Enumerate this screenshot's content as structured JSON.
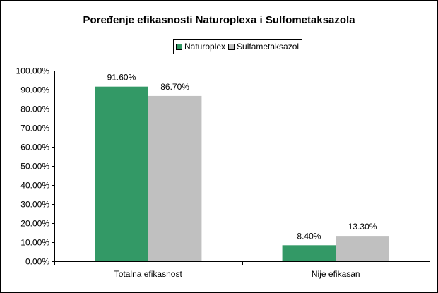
{
  "chart_data": {
    "type": "bar",
    "title": "Poređenje efikasnosti Naturoplexa i Sulfometaksazola",
    "xlabel": "",
    "ylabel": "",
    "categories": [
      "Totalna efikasnost",
      "Nije efikasan"
    ],
    "series": [
      {
        "name": "Naturoplex",
        "values": [
          91.6,
          8.4
        ],
        "labels": [
          "91.60%",
          "8.40%"
        ],
        "color": "#339966"
      },
      {
        "name": "Sulfametaksazol",
        "values": [
          86.7,
          13.3
        ],
        "labels": [
          "86.70%",
          "13.30%"
        ],
        "color": "#C0C0C0"
      }
    ],
    "ylim": [
      0,
      100
    ],
    "yticks": [
      0,
      10,
      20,
      30,
      40,
      50,
      60,
      70,
      80,
      90,
      100
    ],
    "ytick_labels": [
      "0.00%",
      "10.00%",
      "20.00%",
      "30.00%",
      "40.00%",
      "50.00%",
      "60.00%",
      "70.00%",
      "80.00%",
      "90.00%",
      "100.00%"
    ],
    "grid": false,
    "legend_position": "top"
  }
}
